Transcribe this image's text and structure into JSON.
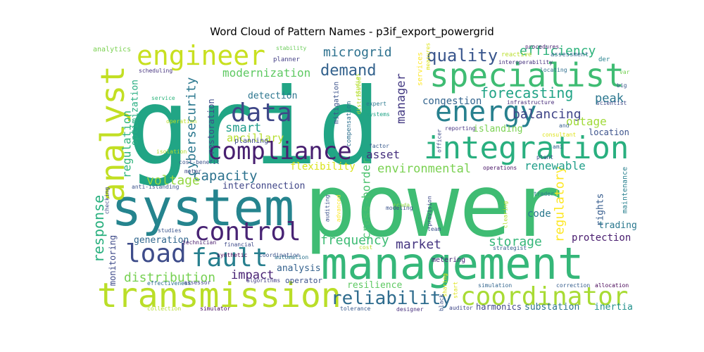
{
  "chart_data": {
    "type": "wordcloud",
    "title": "Word Cloud of Pattern Names - p3if_export_powergrid",
    "words": [
      {
        "text": "grid",
        "weight": 100,
        "color": "#21a585",
        "orient": "h"
      },
      {
        "text": "power",
        "weight": 86,
        "color": "#3fbc73",
        "orient": "h"
      },
      {
        "text": "system",
        "weight": 50,
        "color": "#25848e",
        "orient": "h"
      },
      {
        "text": "management",
        "weight": 44,
        "color": "#35b779",
        "orient": "h"
      },
      {
        "text": "transmission",
        "weight": 38,
        "color": "#bade28",
        "orient": "h"
      },
      {
        "text": "specialist",
        "weight": 36,
        "color": "#3fbc73",
        "orient": "h"
      },
      {
        "text": "integration",
        "weight": 35,
        "color": "#29af7f",
        "orient": "h"
      },
      {
        "text": "energy",
        "weight": 34,
        "color": "#27808e",
        "orient": "h"
      },
      {
        "text": "analyst",
        "weight": 30,
        "color": "#c2df23",
        "orient": "v"
      },
      {
        "text": "engineer",
        "weight": 30,
        "color": "#c8e020",
        "orient": "h"
      },
      {
        "text": "coordinator",
        "weight": 28,
        "color": "#a8db34",
        "orient": "h"
      },
      {
        "text": "compliance",
        "weight": 27,
        "color": "#481f70",
        "orient": "h"
      },
      {
        "text": "data",
        "weight": 27,
        "color": "#3f4788",
        "orient": "h"
      },
      {
        "text": "load",
        "weight": 26,
        "color": "#3e4c8a",
        "orient": "h"
      },
      {
        "text": "control",
        "weight": 26,
        "color": "#482374",
        "orient": "h"
      },
      {
        "text": "fault",
        "weight": 26,
        "color": "#277f8e",
        "orient": "h"
      },
      {
        "text": "reliability",
        "weight": 20,
        "color": "#2f6c8e",
        "orient": "h"
      },
      {
        "text": "quality",
        "weight": 18,
        "color": "#39558c",
        "orient": "h"
      },
      {
        "text": "response",
        "weight": 17,
        "color": "#2ab07f",
        "orient": "v"
      },
      {
        "text": "demand",
        "weight": 17,
        "color": "#33628d",
        "orient": "h"
      },
      {
        "text": "forecasting",
        "weight": 16,
        "color": "#20a386",
        "orient": "h"
      },
      {
        "text": "efficiency",
        "weight": 15,
        "color": "#2eb37c",
        "orient": "h"
      },
      {
        "text": "microgrid",
        "weight": 14,
        "color": "#2d718e",
        "orient": "h"
      },
      {
        "text": "distribution",
        "weight": 14,
        "color": "#77d153",
        "orient": "h"
      },
      {
        "text": "storage",
        "weight": 14,
        "color": "#35b779",
        "orient": "h"
      },
      {
        "text": "frequency",
        "weight": 14,
        "color": "#3dbc74",
        "orient": "h"
      },
      {
        "text": "market",
        "weight": 14,
        "color": "#453581",
        "orient": "h"
      },
      {
        "text": "capacity",
        "weight": 14,
        "color": "#2c728e",
        "orient": "h"
      },
      {
        "text": "voltage",
        "weight": 14,
        "color": "#93d741",
        "orient": "h"
      },
      {
        "text": "cybersecurity",
        "weight": 13,
        "color": "#2a778e",
        "orient": "v"
      },
      {
        "text": "manager",
        "weight": 13,
        "color": "#443a83",
        "orient": "v"
      },
      {
        "text": "balancing",
        "weight": 13,
        "color": "#404588",
        "orient": "h"
      },
      {
        "text": "regulatory",
        "weight": 13,
        "color": "#fde725",
        "orient": "v"
      },
      {
        "text": "environmental",
        "weight": 12,
        "color": "#7ad151",
        "orient": "h"
      },
      {
        "text": "renewable",
        "weight": 12,
        "color": "#1f9e89",
        "orient": "h"
      },
      {
        "text": "asset",
        "weight": 12,
        "color": "#46307e",
        "orient": "h"
      },
      {
        "text": "modernization",
        "weight": 12,
        "color": "#5ec962",
        "orient": "h"
      },
      {
        "text": "smart",
        "weight": 12,
        "color": "#1e9b8a",
        "orient": "h"
      },
      {
        "text": "impact",
        "weight": 12,
        "color": "#482173",
        "orient": "h"
      },
      {
        "text": "regulation",
        "weight": 12,
        "color": "#2fb47c",
        "orient": "v"
      },
      {
        "text": "peak",
        "weight": 12,
        "color": "#2a768e",
        "orient": "h"
      },
      {
        "text": "cross-border",
        "weight": 11,
        "color": "#4ac16d",
        "orient": "v"
      },
      {
        "text": "outage",
        "weight": 11,
        "color": "#a0da39",
        "orient": "h"
      },
      {
        "text": "congestion",
        "weight": 11,
        "color": "#32648e",
        "orient": "h"
      },
      {
        "text": "detection",
        "weight": 10,
        "color": "#2b758e",
        "orient": "h"
      },
      {
        "text": "interconnection",
        "weight": 10,
        "color": "#404688",
        "orient": "h"
      },
      {
        "text": "code",
        "weight": 10,
        "color": "#2a788e",
        "orient": "h"
      },
      {
        "text": "protection",
        "weight": 10,
        "color": "#481c6e",
        "orient": "h"
      },
      {
        "text": "flexibility",
        "weight": 10,
        "color": "#dae319",
        "orient": "h"
      },
      {
        "text": "ancillary",
        "weight": 10,
        "color": "#b5de2b",
        "orient": "h"
      },
      {
        "text": "optimization",
        "weight": 10,
        "color": "#26ad81",
        "orient": "v"
      },
      {
        "text": "analysis",
        "weight": 9,
        "color": "#34618d",
        "orient": "h"
      },
      {
        "text": "resilience",
        "weight": 9,
        "color": "#5ec962",
        "orient": "h"
      },
      {
        "text": "restoration",
        "weight": 9,
        "color": "#3e4a89",
        "orient": "v"
      },
      {
        "text": "generation",
        "weight": 9,
        "color": "#31678e",
        "orient": "h"
      },
      {
        "text": "rights",
        "weight": 9,
        "color": "#365c8d",
        "orient": "v"
      },
      {
        "text": "monitoring",
        "weight": 9,
        "color": "#3e4a89",
        "orient": "v"
      },
      {
        "text": "trading",
        "weight": 9,
        "color": "#2a788e",
        "orient": "h"
      },
      {
        "text": "harmonics",
        "weight": 9,
        "color": "#404688",
        "orient": "h"
      },
      {
        "text": "substation",
        "weight": 9,
        "color": "#2c738e",
        "orient": "h"
      },
      {
        "text": "inertia",
        "weight": 9,
        "color": "#21918c",
        "orient": "h"
      },
      {
        "text": "location",
        "weight": 8,
        "color": "#3b528b",
        "orient": "h"
      },
      {
        "text": "maintenance",
        "weight": 8,
        "color": "#277f8e",
        "orient": "v"
      },
      {
        "text": "islanding",
        "weight": 8,
        "color": "#7ad151",
        "orient": "h"
      },
      {
        "text": "operator",
        "weight": 7,
        "color": "#3b528b",
        "orient": "h"
      },
      {
        "text": "metering",
        "weight": 7,
        "color": "#482878",
        "orient": "h"
      },
      {
        "text": "mitigation",
        "weight": 7,
        "color": "#3b528b",
        "orient": "v"
      },
      {
        "text": "compensation",
        "weight": 7,
        "color": "#2d708e",
        "orient": "v"
      },
      {
        "text": "planning",
        "weight": 6,
        "color": "#3e4a89",
        "orient": "h"
      },
      {
        "text": "reactive",
        "weight": 6,
        "color": "#b8de29",
        "orient": "h"
      },
      {
        "text": "analytics",
        "weight": 6,
        "color": "#7ad151",
        "orient": "h"
      },
      {
        "text": "scheduling",
        "weight": 6,
        "color": "#46337f",
        "orient": "h"
      },
      {
        "text": "planner",
        "weight": 6,
        "color": "#433e85",
        "orient": "h"
      },
      {
        "text": "stability",
        "weight": 6,
        "color": "#6ccd5a",
        "orient": "h"
      },
      {
        "text": "services",
        "weight": 6,
        "color": "#fde725",
        "orient": "v"
      },
      {
        "text": "assessment",
        "weight": 6,
        "color": "#31678e",
        "orient": "h"
      },
      {
        "text": "procedures",
        "weight": 6,
        "color": "#481f70",
        "orient": "h"
      },
      {
        "text": "der",
        "weight": 6,
        "color": "#26828e",
        "orient": "h"
      },
      {
        "text": "interoperability",
        "weight": 5,
        "color": "#46327e",
        "orient": "h"
      },
      {
        "text": "locating",
        "weight": 5,
        "color": "#2e6e8e",
        "orient": "h"
      },
      {
        "text": "infrastructure",
        "weight": 5,
        "color": "#472c7a",
        "orient": "h"
      },
      {
        "text": "scientist",
        "weight": 5,
        "color": "#3e4a89",
        "orient": "h"
      },
      {
        "text": "expert",
        "weight": 5,
        "color": "#2a788e",
        "orient": "h"
      },
      {
        "text": "systems",
        "weight": 5,
        "color": "#20a386",
        "orient": "h"
      },
      {
        "text": "studies",
        "weight": 5,
        "color": "#3a548c",
        "orient": "h"
      },
      {
        "text": "technician",
        "weight": 5,
        "color": "#481b6d",
        "orient": "h"
      },
      {
        "text": "financial",
        "weight": 5,
        "color": "#3e4a89",
        "orient": "h"
      },
      {
        "text": "synthetic",
        "weight": 5,
        "color": "#440154",
        "orient": "h"
      },
      {
        "text": "coordination",
        "weight": 5,
        "color": "#3b528b",
        "orient": "h"
      },
      {
        "text": "automation",
        "weight": 5,
        "color": "#2c728e",
        "orient": "h"
      },
      {
        "text": "algorithms",
        "weight": 5,
        "color": "#433e85",
        "orient": "h"
      },
      {
        "text": "effectiveness",
        "weight": 5,
        "color": "#2d708e",
        "orient": "h"
      },
      {
        "text": "assessor",
        "weight": 5,
        "color": "#404688",
        "orient": "h"
      },
      {
        "text": "simulation",
        "weight": 5,
        "color": "#32658e",
        "orient": "h"
      },
      {
        "text": "correction",
        "weight": 5,
        "color": "#365d8d",
        "orient": "h"
      },
      {
        "text": "allocation",
        "weight": 5,
        "color": "#440154",
        "orient": "h"
      },
      {
        "text": "tolerance",
        "weight": 5,
        "color": "#38598c",
        "orient": "h"
      },
      {
        "text": "designer",
        "weight": 5,
        "color": "#472f7d",
        "orient": "h"
      },
      {
        "text": "auditor",
        "weight": 5,
        "color": "#3f4788",
        "orient": "h"
      },
      {
        "text": "collection",
        "weight": 5,
        "color": "#b5de2b",
        "orient": "h"
      },
      {
        "text": "simulator",
        "weight": 5,
        "color": "#46085c",
        "orient": "h"
      },
      {
        "text": "strategist",
        "weight": 5,
        "color": "#365c8d",
        "orient": "h"
      },
      {
        "text": "cost",
        "weight": 5,
        "color": "#b5de2b",
        "orient": "h"
      },
      {
        "text": "team",
        "weight": 5,
        "color": "#3b528b",
        "orient": "h"
      },
      {
        "text": "trader",
        "weight": 5,
        "color": "#2a788e",
        "orient": "h"
      },
      {
        "text": "plant",
        "weight": 5,
        "color": "#3e4a89",
        "orient": "h"
      },
      {
        "text": "ami",
        "weight": 5,
        "color": "#33628d",
        "orient": "h"
      },
      {
        "text": "operations",
        "weight": 5,
        "color": "#471365",
        "orient": "h"
      },
      {
        "text": "reporting",
        "weight": 5,
        "color": "#463480",
        "orient": "h"
      },
      {
        "text": "consultant",
        "weight": 5,
        "color": "#dde318",
        "orient": "h"
      },
      {
        "text": "and",
        "weight": 5,
        "color": "#355f8d",
        "orient": "h"
      },
      {
        "text": "big",
        "weight": 5,
        "color": "#38598c",
        "orient": "h"
      },
      {
        "text": "var",
        "weight": 5,
        "color": "#75d054",
        "orient": "h"
      },
      {
        "text": "service",
        "weight": 5,
        "color": "#2fb47c",
        "orient": "h"
      },
      {
        "text": "operation",
        "weight": 5,
        "color": "#bddf26",
        "orient": "h"
      },
      {
        "text": "isolation",
        "weight": 5,
        "color": "#b5de2b",
        "orient": "h"
      },
      {
        "text": "cost-benefit",
        "weight": 5,
        "color": "#3b528b",
        "orient": "h"
      },
      {
        "text": "meter",
        "weight": 5,
        "color": "#3e4a89",
        "orient": "h"
      },
      {
        "text": "anti-islanding",
        "weight": 5,
        "color": "#3b528b",
        "orient": "h"
      },
      {
        "text": "scada",
        "weight": 5,
        "color": "#90d743",
        "orient": "h"
      },
      {
        "text": "modeling",
        "weight": 5,
        "color": "#3b528b",
        "orient": "h"
      },
      {
        "text": "factor",
        "weight": 5,
        "color": "#38598c",
        "orient": "h"
      },
      {
        "text": "checking",
        "weight": 5,
        "color": "#3e4a89",
        "orient": "v"
      },
      {
        "text": "studies",
        "weight": 5,
        "color": "#b5de2b",
        "orient": "v"
      },
      {
        "text": "auditing",
        "weight": 5,
        "color": "#3b528b",
        "orient": "v"
      },
      {
        "text": "advanced",
        "weight": 5,
        "color": "#fde725",
        "orient": "v"
      },
      {
        "text": "provision",
        "weight": 5,
        "color": "#3e4a89",
        "orient": "v"
      },
      {
        "text": "clearing",
        "weight": 5,
        "color": "#b5de2b",
        "orient": "v"
      },
      {
        "text": "sharing",
        "weight": 5,
        "color": "#dde318",
        "orient": "v"
      },
      {
        "text": "start",
        "weight": 5,
        "color": "#dde318",
        "orient": "v"
      },
      {
        "text": "black",
        "weight": 5,
        "color": "#3b528b",
        "orient": "v"
      },
      {
        "text": "officer",
        "weight": 5,
        "color": "#3e4a89",
        "orient": "v"
      },
      {
        "text": "distributed",
        "weight": 5,
        "color": "#b5de2b",
        "orient": "v"
      },
      {
        "text": "measures",
        "weight": 5,
        "color": "#dde318",
        "orient": "v"
      }
    ]
  }
}
